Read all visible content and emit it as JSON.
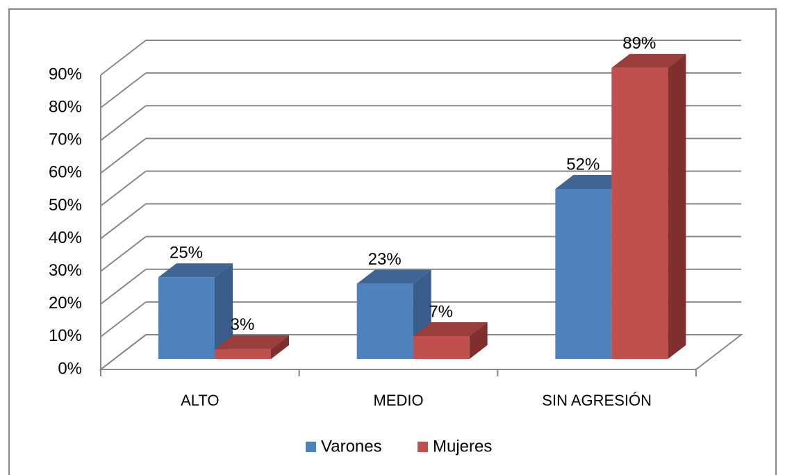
{
  "chart_data": {
    "type": "bar3d",
    "categories": [
      "ALTO",
      "MEDIO",
      "SIN AGRESIÓN"
    ],
    "series": [
      {
        "name": "Varones",
        "color": "#4f81bd",
        "top": "#3e6594",
        "side": "#385d8a",
        "values": [
          25,
          23,
          52
        ],
        "value_labels": [
          "25%",
          "23%",
          "52%"
        ]
      },
      {
        "name": "Mujeres",
        "color": "#c0504d",
        "top": "#9a3e3b",
        "side": "#7f2f2d",
        "values": [
          3,
          7,
          89
        ],
        "value_labels": [
          "3%",
          "7%",
          "89%"
        ]
      }
    ],
    "ylim": [
      0,
      90
    ],
    "yticks": [
      {
        "value": 0,
        "label": "0%"
      },
      {
        "value": 10,
        "label": "10%"
      },
      {
        "value": 20,
        "label": "20%"
      },
      {
        "value": 30,
        "label": "30%"
      },
      {
        "value": 40,
        "label": "40%"
      },
      {
        "value": 50,
        "label": "50%"
      },
      {
        "value": 60,
        "label": "60%"
      },
      {
        "value": 70,
        "label": "70%"
      },
      {
        "value": 80,
        "label": "80%"
      },
      {
        "value": 90,
        "label": "90%"
      }
    ],
    "grid": true,
    "legend": "bottom"
  }
}
